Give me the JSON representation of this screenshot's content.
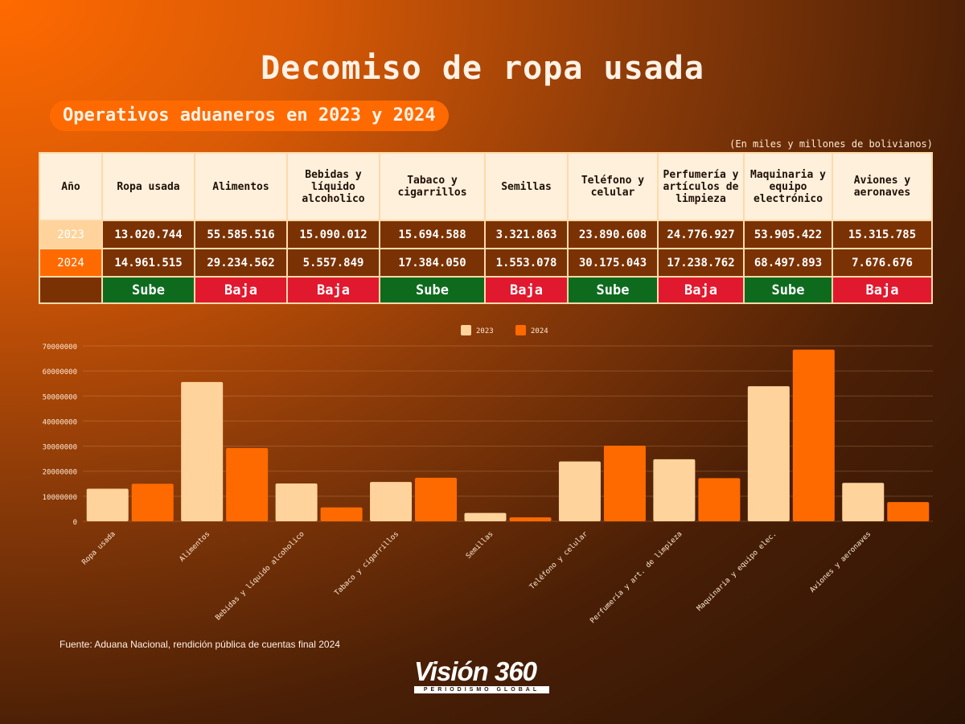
{
  "title": "Decomiso de ropa usada",
  "subtitle": "Operativos aduaneros en 2023 y 2024",
  "units_note": "(En miles y millones de bolivianos)",
  "table": {
    "year_header": "Año",
    "columns": [
      "Ropa usada",
      "Alimentos",
      "Bebidas y líquido alcoholico",
      "Tabaco y cigarrillos",
      "Semillas",
      "Teléfono y celular",
      "Perfumería y artículos de limpieza",
      "Maquinaria y equipo electrónico",
      "Aviones y aeronaves"
    ],
    "rows": [
      {
        "year": "2023",
        "values": [
          "13.020.744",
          "55.585.516",
          "15.090.012",
          "15.694.588",
          "3.321.863",
          "23.890.608",
          "24.776.927",
          "53.905.422",
          "15.315.785"
        ]
      },
      {
        "year": "2024",
        "values": [
          "14.961.515",
          "29.234.562",
          "5.557.849",
          "17.384.050",
          "1.553.078",
          "30.175.043",
          "17.238.762",
          "68.497.893",
          "7.676.676"
        ]
      }
    ],
    "trend": [
      "Sube",
      "Baja",
      "Baja",
      "Sube",
      "Baja",
      "Sube",
      "Baja",
      "Sube",
      "Baja"
    ]
  },
  "colors": {
    "c2023": "#ffd39b",
    "c2024": "#ff6a00",
    "up": "#0e6b1e",
    "down": "#e0192f"
  },
  "chart_data": {
    "type": "bar",
    "categories": [
      "Ropa usada",
      "Alimentos",
      "Bebidas y líquido alcoholico",
      "Tabaco y cigarrillos",
      "Semillas",
      "Teléfono y celular",
      "Perfumería y art. de limpieza",
      "Maquinaria y equipo elec.",
      "Aviones y aeronaves"
    ],
    "series": [
      {
        "name": "2023",
        "values": [
          13020744,
          55585516,
          15090012,
          15694588,
          3321863,
          23890608,
          24776927,
          53905422,
          15315785
        ]
      },
      {
        "name": "2024",
        "values": [
          14961515,
          29234562,
          5557849,
          17384050,
          1553078,
          30175043,
          17238762,
          68497893,
          7676676
        ]
      }
    ],
    "ylim": [
      0,
      70000000
    ],
    "yticks": [
      "0",
      "10000000",
      "20000000",
      "30000000",
      "40000000",
      "50000000",
      "60000000",
      "70000000"
    ],
    "legend": "top-center",
    "grid": true
  },
  "source": "Fuente: Aduana Nacional, rendición pública de cuentas final 2024",
  "logo": {
    "name": "Visión 360",
    "tagline": "PERIODISMO GLOBAL"
  }
}
